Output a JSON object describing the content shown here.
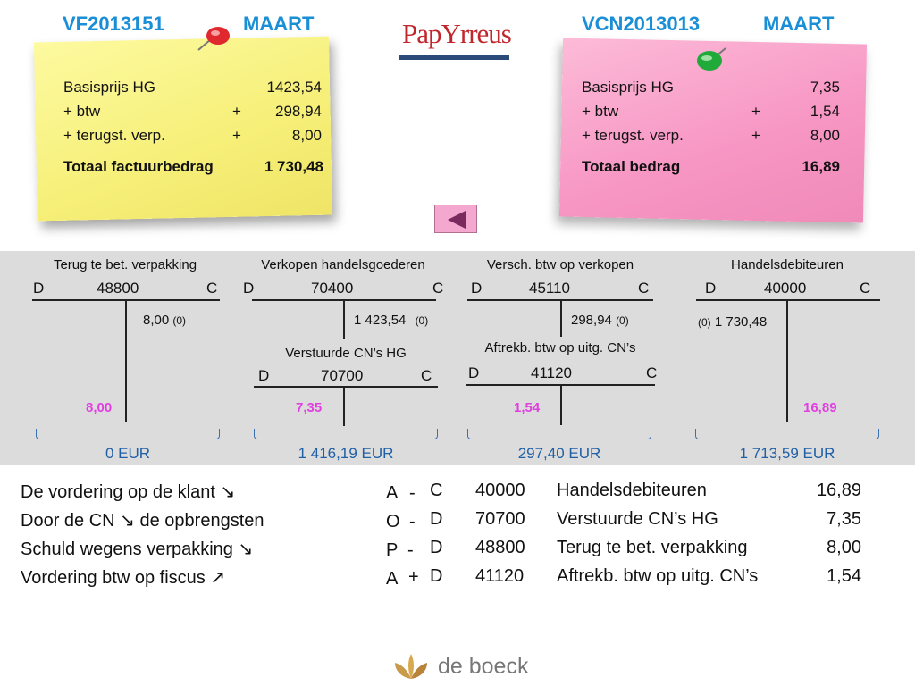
{
  "invoice_left": {
    "number": "VF2013151",
    "month": "MAART"
  },
  "invoice_right": {
    "number": "VCN2013013",
    "month": "MAART"
  },
  "logo": {
    "text": "PapYrreus"
  },
  "note_left": {
    "r1_label": "Basisprijs HG",
    "r1_value": "1423,54",
    "r2_label": "+ btw",
    "r2_op": "+",
    "r2_value": "298,94",
    "r3_label": "+ terugst. verp.",
    "r3_op": "+",
    "r3_value": "8,00",
    "total_label": "Totaal factuurbedrag",
    "total_value": "1 730,48"
  },
  "note_right": {
    "r1_label": "Basisprijs HG",
    "r1_value": "7,35",
    "r2_label": "+ btw",
    "r2_op": "+",
    "r2_value": "1,54",
    "r3_label": "+ terugst. verp.",
    "r3_op": "+",
    "r3_value": "8,00",
    "total_label": "Totaal bedrag",
    "total_value": "16,89"
  },
  "accounts": {
    "a1": {
      "title": "Terug te bet. verpakking",
      "d": "D",
      "num": "48800",
      "c": "C",
      "credit": "8,00",
      "credit_tag": "(0)",
      "pink": "8,00",
      "total": "0 EUR"
    },
    "a2": {
      "title": "Verkopen handelsgoederen",
      "d": "D",
      "num": "70400",
      "c": "C",
      "credit": "1 423,54",
      "credit_tag": "(0)",
      "total": "1 416,19 EUR"
    },
    "a2b": {
      "title": "Verstuurde CN’s HG",
      "d": "D",
      "num": "70700",
      "c": "C",
      "pink": "7,35"
    },
    "a3": {
      "title": "Versch. btw op verkopen",
      "d": "D",
      "num": "45110",
      "c": "C",
      "credit": "298,94",
      "credit_tag": "(0)",
      "total": "297,40 EUR"
    },
    "a3b": {
      "title": "Aftrekb. btw op uitg. CN’s",
      "d": "D",
      "num": "41120",
      "c": "C",
      "pink": "1,54"
    },
    "a4": {
      "title": "Handelsdebiteuren",
      "d": "D",
      "num": "40000",
      "c": "C",
      "debit_tag": "(0)",
      "debit": "1 730,48",
      "pink": "16,89",
      "total": "1 713,59 EUR"
    }
  },
  "journal": [
    {
      "text": "De vordering op de klant",
      "arrow": "↘",
      "code": "A",
      "sign": "-",
      "side": "C",
      "account": "40000",
      "name": "Handelsdebiteuren",
      "amount": "16,89"
    },
    {
      "text_a": "Door de CN",
      "arrow": "↘",
      "text_b": "de opbrengsten",
      "code": "O",
      "sign": "-",
      "side": "D",
      "account": "70700",
      "name": "Verstuurde CN’s HG",
      "amount": "7,35"
    },
    {
      "text": "Schuld wegens verpakking",
      "arrow": "↘",
      "code": "P",
      "sign": "-",
      "side": "D",
      "account": "48800",
      "name": "Terug te bet. verpakking",
      "amount": "8,00"
    },
    {
      "text": "Vordering btw op fiscus",
      "arrow": "↗",
      "code": "A",
      "sign": "+",
      "side": "D",
      "account": "41120",
      "name": "Aftrekb. btw op uitg. CN’s",
      "amount": "1,54"
    }
  ],
  "footer": {
    "brand": "de boeck"
  }
}
